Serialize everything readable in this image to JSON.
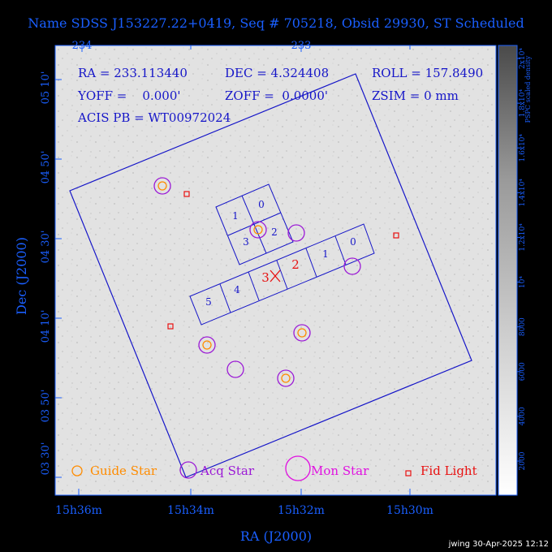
{
  "title": "Name SDSS J153227.22+0419, Seq # 705218, Obsid 29930, ST Scheduled",
  "info": {
    "ra": "RA = 233.113440",
    "dec": "DEC = 4.324408",
    "roll": "ROLL = 157.8490",
    "yoff": "YOFF =    0.000'",
    "zoff": "ZOFF =  0.0000'",
    "zsim": "ZSIM = 0 mm",
    "acis": "ACIS PB = WT00972024"
  },
  "top_ticks": [
    "234",
    "233"
  ],
  "x_ticks": [
    "15h36m",
    "15h34m",
    "15h32m",
    "15h30m"
  ],
  "x_axis_label": "RA (J2000)",
  "y_ticks": [
    "05 10'",
    "04 50'",
    "04 30'",
    "04 10'",
    "03 50'",
    "03 30'"
  ],
  "y_axis_label": "Dec (J2000)",
  "colorbar": {
    "label": "PSPC scaled density",
    "ticks": [
      "2000",
      "4000",
      "6000",
      "8000",
      "10⁴",
      "1.2x10⁴",
      "1.4x10⁴",
      "1.6x10⁴",
      "1.8x10⁴",
      "2x10⁴"
    ]
  },
  "chips_upper": [
    "0",
    "1",
    "3",
    "2"
  ],
  "chips_lower": [
    "0",
    "1",
    "2",
    "3",
    "4",
    "5"
  ],
  "legend": {
    "guide": "Guide Star",
    "acq": "Acq Star",
    "mon": "Mon Star",
    "fid": "Fid Light"
  },
  "footer": "jwing 30-Apr-2025 12:12",
  "colors": {
    "background": "#000000",
    "axis_text": "#1a5fff",
    "info_text": "#1515c8",
    "guide": "#ff8c00",
    "acq": "#9b19d6",
    "mon": "#e010e0",
    "fid": "#e81010",
    "plot_bg": "#e2e2e2"
  }
}
